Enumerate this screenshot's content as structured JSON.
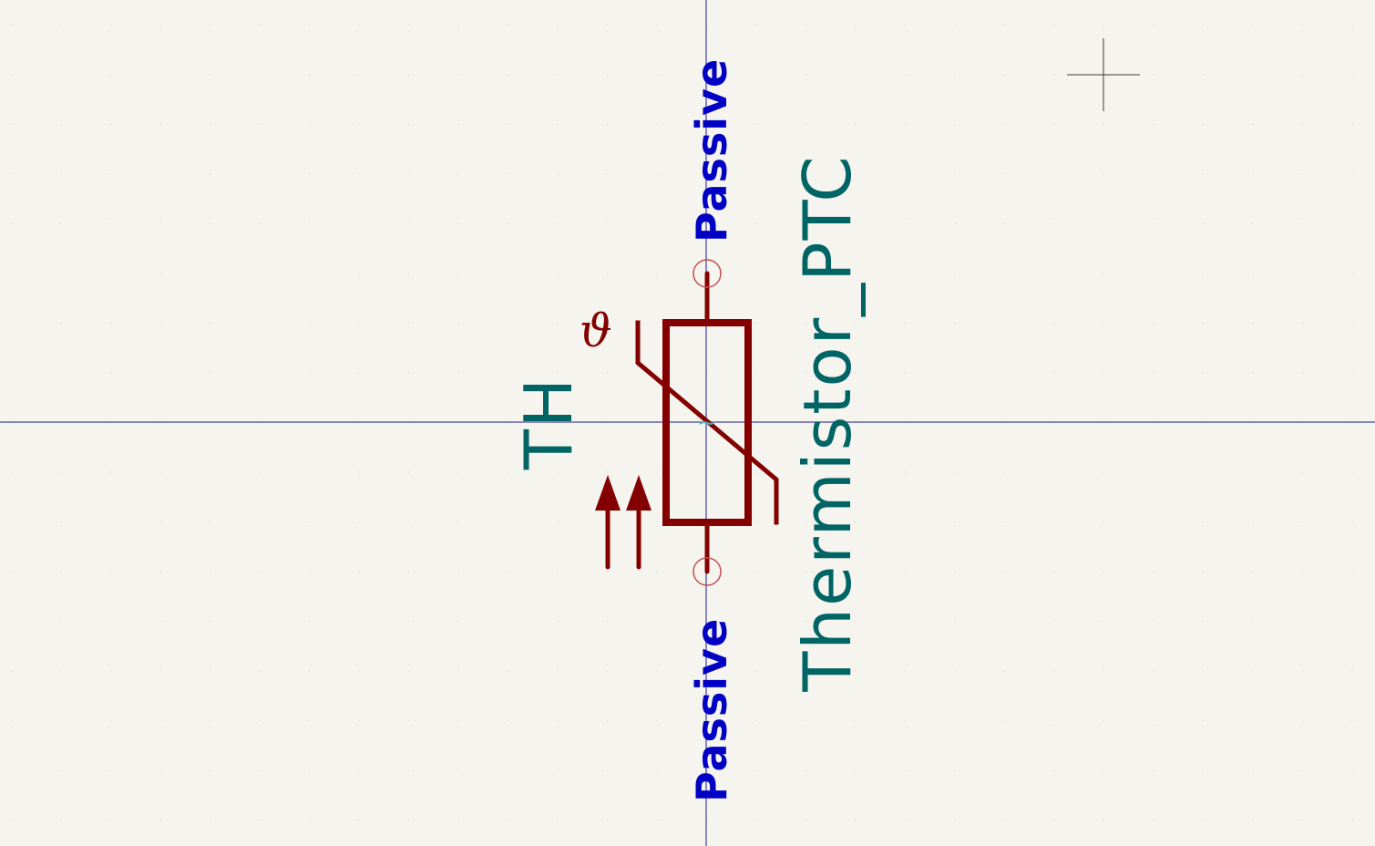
{
  "symbol": {
    "reference": "TH",
    "value": "Thermistor_PTC",
    "pins": [
      {
        "type_label": "Passive"
      },
      {
        "type_label": "Passive"
      }
    ],
    "center_mark": "~",
    "temperature_glyph": "ϑ"
  },
  "colors": {
    "background": "#f5f4ef",
    "body": "#840000",
    "pin_type": "#0000c4",
    "fields": "#006464",
    "axis": "#1c1c8c"
  },
  "icons": {
    "cursor": "crosshair-cursor-icon",
    "heat_arrows": "up-arrows-icon"
  }
}
